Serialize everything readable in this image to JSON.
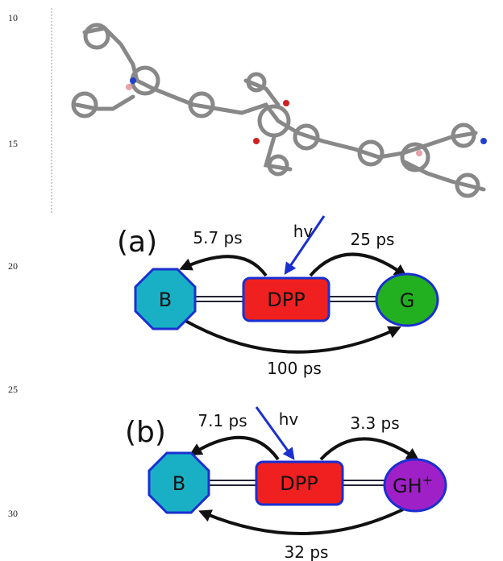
{
  "line_numbers": [
    "10",
    "15",
    "20",
    "25",
    "30"
  ],
  "panels": [
    {
      "label": "(a)",
      "nodes": {
        "left": "B",
        "center": "DPP",
        "right": "G"
      },
      "excitation": "hv",
      "rates": {
        "to_left": "5.7 ps",
        "to_right": "25 ps",
        "left_to_right": "100 ps"
      }
    },
    {
      "label": "(b)",
      "nodes": {
        "left": "B",
        "center": "DPP",
        "right": "GH",
        "right_superscript": "+"
      },
      "excitation": "hv",
      "rates": {
        "to_left": "7.1 ps",
        "to_right": "3.3 ps",
        "right_to_left": "32 ps"
      }
    }
  ]
}
